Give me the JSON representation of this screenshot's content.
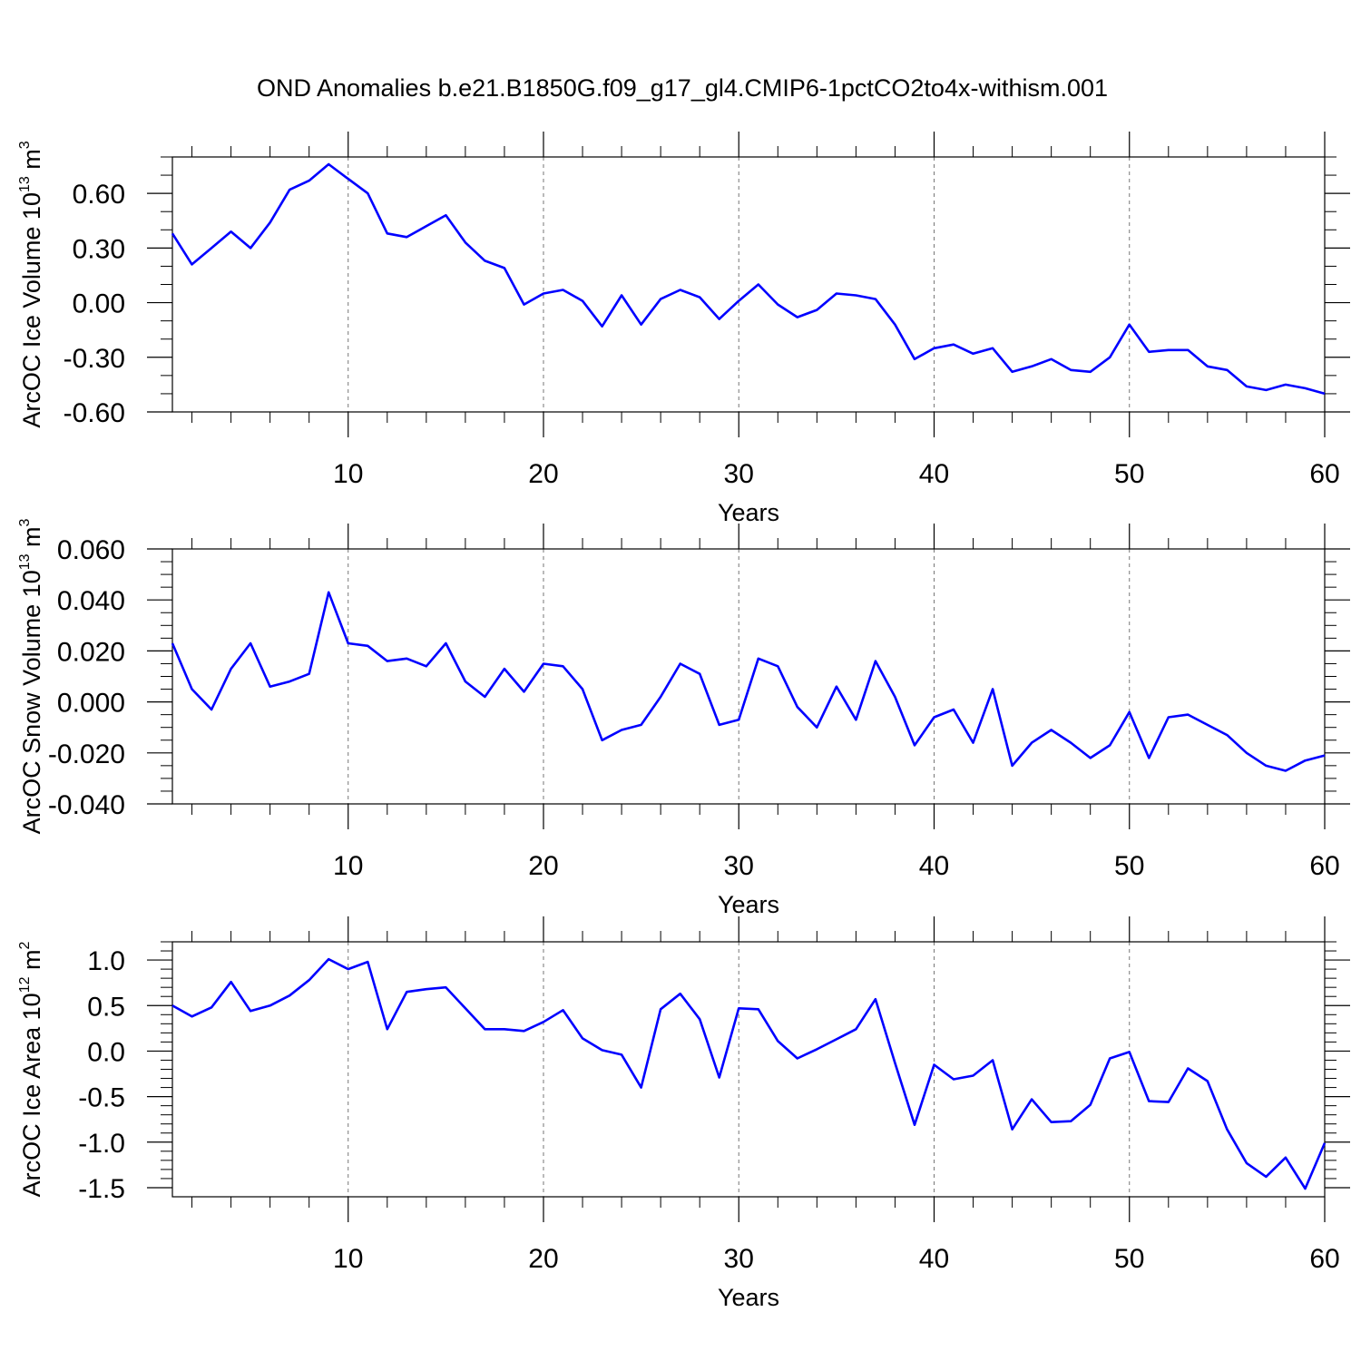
{
  "figure_title": "OND Anomalies b.e21.B1850G.f09_g17_gl4.CMIP6-1pctCO2to4x-withism.001",
  "line_color": "#0000ff",
  "chart_data": [
    {
      "type": "line",
      "ylabel_main": "ArcOC Ice Volume 10",
      "ylabel_exp": "13",
      "ylabel_unit": " m",
      "ylabel_unit_exp": "3",
      "xlabel": "Years",
      "xlim": [
        1,
        60
      ],
      "ylim": [
        -0.6,
        0.8
      ],
      "x_ticks": [
        10,
        20,
        30,
        40,
        50,
        60
      ],
      "y_ticks": [
        -0.6,
        -0.3,
        0.0,
        0.3,
        0.6
      ],
      "y_ticks_minor": [
        -0.5,
        -0.4,
        -0.2,
        -0.1,
        0.1,
        0.2,
        0.4,
        0.5,
        0.7,
        0.8
      ],
      "y_tick_decimals": 2,
      "vgrid": [
        10,
        20,
        30,
        40,
        50
      ],
      "x": [
        1,
        2,
        3,
        4,
        5,
        6,
        7,
        8,
        9,
        10,
        11,
        12,
        13,
        14,
        15,
        16,
        17,
        18,
        19,
        20,
        21,
        22,
        23,
        24,
        25,
        26,
        27,
        28,
        29,
        30,
        31,
        32,
        33,
        34,
        35,
        36,
        37,
        38,
        39,
        40,
        41,
        42,
        43,
        44,
        45,
        46,
        47,
        48,
        49,
        50,
        51,
        52,
        53,
        54,
        55,
        56,
        57,
        58,
        59,
        60
      ],
      "values": [
        0.38,
        0.21,
        0.3,
        0.39,
        0.3,
        0.44,
        0.62,
        0.67,
        0.76,
        0.68,
        0.6,
        0.38,
        0.36,
        0.42,
        0.48,
        0.33,
        0.23,
        0.19,
        -0.01,
        0.05,
        0.07,
        0.01,
        -0.13,
        0.04,
        -0.12,
        0.02,
        0.07,
        0.03,
        -0.09,
        0.01,
        0.1,
        -0.01,
        -0.08,
        -0.04,
        0.05,
        0.04,
        0.02,
        -0.12,
        -0.31,
        -0.25,
        -0.23,
        -0.28,
        -0.25,
        -0.38,
        -0.35,
        -0.31,
        -0.37,
        -0.38,
        -0.3,
        -0.12,
        -0.27,
        -0.26,
        -0.26,
        -0.35,
        -0.37,
        -0.46,
        -0.48,
        -0.45,
        -0.47,
        -0.5
      ]
    },
    {
      "type": "line",
      "ylabel_main": "ArcOC Snow Volume 10",
      "ylabel_exp": "13",
      "ylabel_unit": " m",
      "ylabel_unit_exp": "3",
      "xlabel": "Years",
      "xlim": [
        1,
        60
      ],
      "ylim": [
        -0.04,
        0.06
      ],
      "x_ticks": [
        10,
        20,
        30,
        40,
        50,
        60
      ],
      "y_ticks": [
        -0.04,
        -0.02,
        0.0,
        0.02,
        0.04,
        0.06
      ],
      "y_ticks_minor": [
        -0.035,
        -0.03,
        -0.025,
        -0.015,
        -0.01,
        -0.005,
        0.005,
        0.01,
        0.015,
        0.025,
        0.03,
        0.035,
        0.045,
        0.05,
        0.055
      ],
      "y_tick_decimals": 3,
      "vgrid": [
        10,
        20,
        30,
        40,
        50
      ],
      "x": [
        1,
        2,
        3,
        4,
        5,
        6,
        7,
        8,
        9,
        10,
        11,
        12,
        13,
        14,
        15,
        16,
        17,
        18,
        19,
        20,
        21,
        22,
        23,
        24,
        25,
        26,
        27,
        28,
        29,
        30,
        31,
        32,
        33,
        34,
        35,
        36,
        37,
        38,
        39,
        40,
        41,
        42,
        43,
        44,
        45,
        46,
        47,
        48,
        49,
        50,
        51,
        52,
        53,
        54,
        55,
        56,
        57,
        58,
        59,
        60
      ],
      "values": [
        0.023,
        0.005,
        -0.003,
        0.013,
        0.023,
        0.006,
        0.008,
        0.011,
        0.043,
        0.023,
        0.022,
        0.016,
        0.017,
        0.014,
        0.023,
        0.008,
        0.002,
        0.013,
        0.004,
        0.015,
        0.014,
        0.005,
        -0.015,
        -0.011,
        -0.009,
        0.002,
        0.015,
        0.011,
        -0.009,
        -0.007,
        0.017,
        0.014,
        -0.002,
        -0.01,
        0.006,
        -0.007,
        0.016,
        0.002,
        -0.017,
        -0.006,
        -0.003,
        -0.016,
        0.005,
        -0.025,
        -0.016,
        -0.011,
        -0.016,
        -0.022,
        -0.017,
        -0.004,
        -0.022,
        -0.006,
        -0.005,
        -0.009,
        -0.013,
        -0.02,
        -0.025,
        -0.027,
        -0.023,
        -0.021
      ]
    },
    {
      "type": "line",
      "ylabel_main": "ArcOC Ice Area 10",
      "ylabel_exp": "12",
      "ylabel_unit": " m",
      "ylabel_unit_exp": "2",
      "xlabel": "Years",
      "xlim": [
        1,
        60
      ],
      "ylim": [
        -1.6,
        1.2
      ],
      "x_ticks": [
        10,
        20,
        30,
        40,
        50,
        60
      ],
      "y_ticks": [
        -1.5,
        -1.0,
        -0.5,
        0.0,
        0.5,
        1.0
      ],
      "y_ticks_minor": [
        -1.4,
        -1.3,
        -1.2,
        -1.1,
        -0.9,
        -0.8,
        -0.7,
        -0.6,
        -0.4,
        -0.3,
        -0.2,
        -0.1,
        0.1,
        0.2,
        0.3,
        0.4,
        0.6,
        0.7,
        0.8,
        0.9,
        1.1,
        1.2
      ],
      "y_tick_decimals": 1,
      "vgrid": [
        10,
        20,
        30,
        40,
        50
      ],
      "x": [
        1,
        2,
        3,
        4,
        5,
        6,
        7,
        8,
        9,
        10,
        11,
        12,
        13,
        14,
        15,
        16,
        17,
        18,
        19,
        20,
        21,
        22,
        23,
        24,
        25,
        26,
        27,
        28,
        29,
        30,
        31,
        32,
        33,
        34,
        35,
        36,
        37,
        38,
        39,
        40,
        41,
        42,
        43,
        44,
        45,
        46,
        47,
        48,
        49,
        50,
        51,
        52,
        53,
        54,
        55,
        56,
        57,
        58,
        59,
        60
      ],
      "values": [
        0.5,
        0.38,
        0.48,
        0.76,
        0.44,
        0.5,
        0.61,
        0.78,
        1.01,
        0.9,
        0.98,
        0.24,
        0.65,
        0.68,
        0.7,
        0.47,
        0.24,
        0.24,
        0.22,
        0.32,
        0.45,
        0.14,
        0.01,
        -0.04,
        -0.4,
        0.46,
        0.63,
        0.35,
        -0.29,
        0.47,
        0.46,
        0.11,
        -0.08,
        0.02,
        0.13,
        0.24,
        0.57,
        -0.13,
        -0.81,
        -0.15,
        -0.31,
        -0.27,
        -0.1,
        -0.86,
        -0.53,
        -0.78,
        -0.77,
        -0.59,
        -0.08,
        -0.01,
        -0.55,
        -0.56,
        -0.19,
        -0.33,
        -0.86,
        -1.23,
        -1.38,
        -1.17,
        -1.51,
        -1.01
      ]
    }
  ]
}
